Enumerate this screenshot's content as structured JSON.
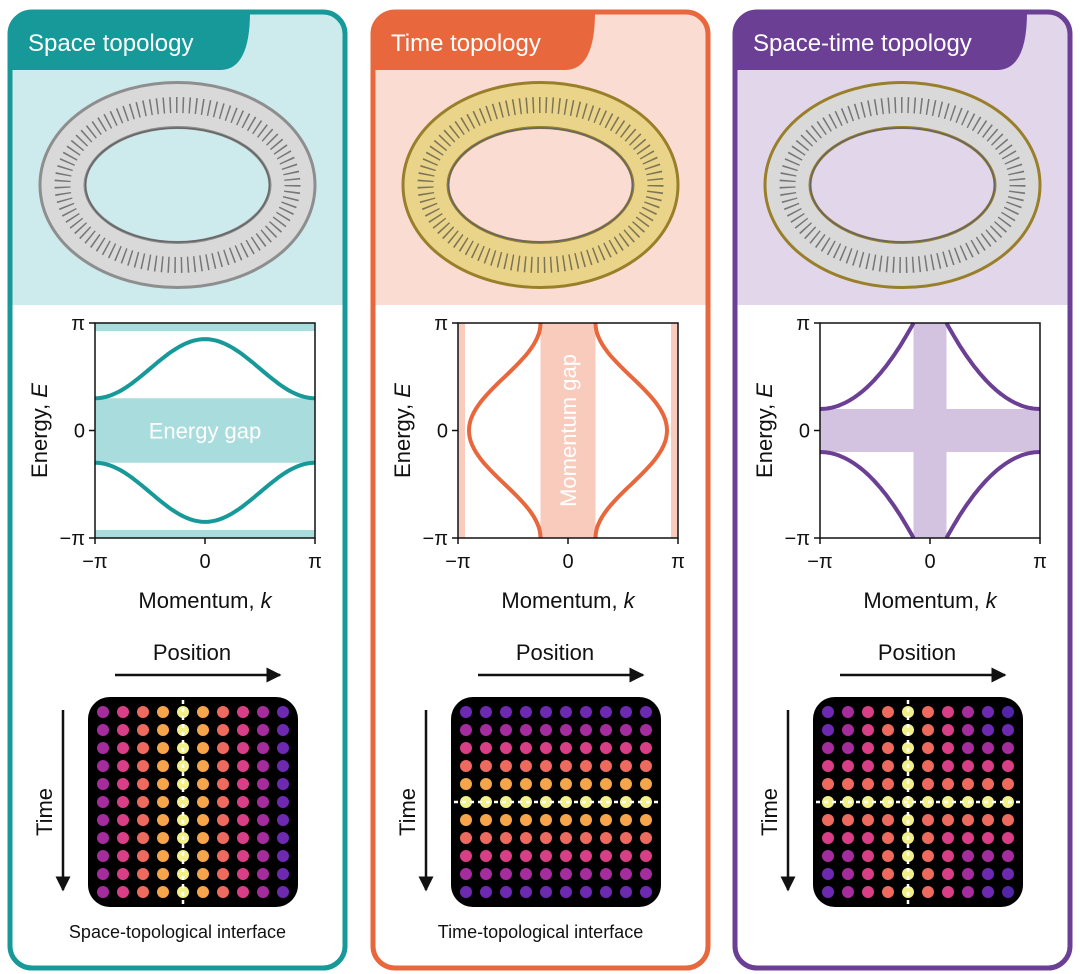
{
  "panels": [
    {
      "title": "Space topology",
      "plot": {
        "y_label": "Energy,",
        "y_var": "E",
        "x_label": "Momentum,",
        "x_var": "k",
        "y_ticks": [
          "π",
          "0",
          "−π"
        ],
        "x_ticks": [
          "−π",
          "0",
          "π"
        ],
        "gap_label": "Energy gap"
      },
      "position_label": "Position",
      "time_label": "Time",
      "caption": "Space-topological interface"
    },
    {
      "title": "Time topology",
      "plot": {
        "y_label": "Energy,",
        "y_var": "E",
        "x_label": "Momentum,",
        "x_var": "k",
        "y_ticks": [
          "π",
          "0",
          "−π"
        ],
        "x_ticks": [
          "−π",
          "0",
          "π"
        ],
        "gap_label": "Momentum gap"
      },
      "position_label": "Position",
      "time_label": "Time",
      "caption": "Time-topological interface"
    },
    {
      "title": "Space-time topology",
      "plot": {
        "y_label": "Energy,",
        "y_var": "E",
        "x_label": "Momentum,",
        "x_var": "k",
        "y_ticks": [
          "π",
          "0",
          "−π"
        ],
        "x_ticks": [
          "−π",
          "0",
          "π"
        ]
      },
      "position_label": "Position",
      "time_label": "Time"
    }
  ]
}
